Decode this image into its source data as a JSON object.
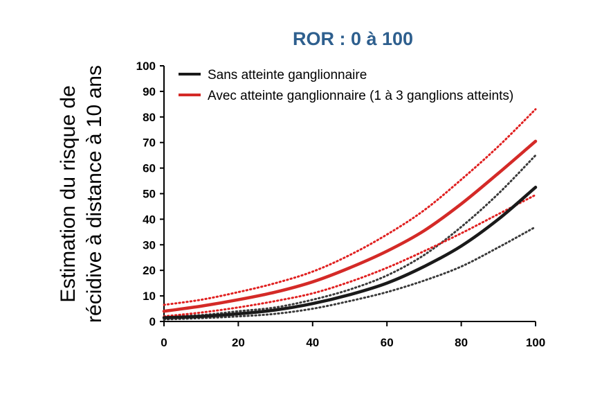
{
  "chart_data": {
    "type": "line",
    "title": "ROR : 0 à 100",
    "ylabel_lines": [
      "Estimation du risque de",
      "récidive à distance à 10 ans"
    ],
    "xlabel": "",
    "xlim": [
      0,
      100
    ],
    "ylim": [
      0,
      100
    ],
    "x_ticks": [
      0,
      20,
      40,
      60,
      80,
      100
    ],
    "y_ticks": [
      0,
      10,
      20,
      30,
      40,
      50,
      60,
      70,
      80,
      90,
      100
    ],
    "legend_position": "top-left",
    "colors": {
      "title": "#2e5f8e",
      "black": "#1a1a1a",
      "red": "#d42a27",
      "dotted_black": "#3a3a3a",
      "dotted_red": "#e02020"
    },
    "series": [
      {
        "name": "Sans atteinte ganglionnaire",
        "color": "#1a1a1a",
        "style": "solid",
        "x": [
          0,
          10,
          20,
          30,
          40,
          50,
          60,
          70,
          80,
          90,
          100
        ],
        "y": [
          1.5,
          2,
          3,
          4.5,
          7,
          10.5,
          15,
          21.5,
          29.5,
          40,
          52.5
        ]
      },
      {
        "name": "Avec atteinte ganglionnaire (1 à 3 ganglions atteints)",
        "color": "#d42a27",
        "style": "solid",
        "x": [
          0,
          10,
          20,
          30,
          40,
          50,
          60,
          70,
          80,
          90,
          100
        ],
        "y": [
          4,
          6,
          8.5,
          11.5,
          15.5,
          21,
          27.5,
          35.5,
          46,
          58,
          70.5
        ]
      }
    ],
    "confidence_bands": [
      {
        "color": "#3a3a3a",
        "style": "dotted",
        "x": [
          0,
          10,
          20,
          30,
          40,
          50,
          60,
          70,
          80,
          90,
          100
        ],
        "upper": [
          2,
          2.5,
          4,
          5.5,
          8.5,
          12.5,
          18,
          26,
          37,
          50,
          65
        ],
        "lower": [
          0.8,
          1.3,
          2,
          3,
          5,
          8,
          11.5,
          16,
          21.5,
          29,
          37
        ]
      },
      {
        "color": "#e02020",
        "style": "dotted",
        "x": [
          0,
          10,
          20,
          30,
          40,
          50,
          60,
          70,
          80,
          90,
          100
        ],
        "upper": [
          6.5,
          8.5,
          11.5,
          15,
          19.5,
          26,
          34,
          43.5,
          55.5,
          68.5,
          83
        ],
        "lower": [
          2,
          3.5,
          5.5,
          8,
          11,
          15.5,
          21,
          27.5,
          34.5,
          42,
          49.5
        ]
      }
    ]
  }
}
